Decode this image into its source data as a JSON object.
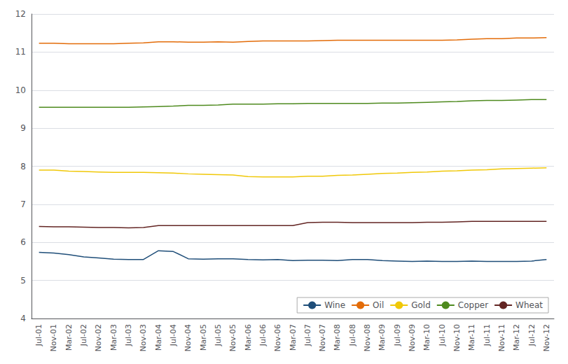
{
  "chart_data": {
    "type": "line",
    "categories": [
      "Jul-01",
      "Nov-01",
      "Mar-02",
      "Jul-02",
      "Nov-02",
      "Mar-03",
      "Jul-03",
      "Nov-03",
      "Mar-04",
      "Jul-04",
      "Nov-04",
      "Mar-05",
      "Jul-05",
      "Nov-05",
      "Mar-06",
      "Jul-06",
      "Nov-06",
      "Mar-07",
      "Jul-07",
      "Nov-07",
      "Mar-08",
      "Jul-08",
      "Nov-08",
      "Mar-09",
      "Jul-09",
      "Nov-09",
      "Mar-10",
      "Jul-10",
      "Nov-10",
      "Mar-11",
      "Jul-11",
      "Nov-11",
      "Mar-12",
      "Jul-12",
      "Nov-12"
    ],
    "series": [
      {
        "name": "Wine",
        "color": "#1F4E79",
        "values": [
          5.74,
          5.72,
          5.68,
          5.62,
          5.59,
          5.56,
          5.55,
          5.55,
          5.78,
          5.76,
          5.57,
          5.56,
          5.57,
          5.57,
          5.55,
          5.54,
          5.55,
          5.52,
          5.53,
          5.53,
          5.52,
          5.55,
          5.55,
          5.52,
          5.51,
          5.5,
          5.51,
          5.5,
          5.5,
          5.51,
          5.5,
          5.5,
          5.5,
          5.51,
          5.55
        ]
      },
      {
        "name": "Oil",
        "color": "#E36C09",
        "values": [
          11.23,
          11.23,
          11.22,
          11.22,
          11.22,
          11.22,
          11.23,
          11.24,
          11.27,
          11.27,
          11.26,
          11.26,
          11.27,
          11.26,
          11.28,
          11.29,
          11.29,
          11.29,
          11.29,
          11.3,
          11.31,
          11.31,
          11.31,
          11.31,
          11.31,
          11.31,
          11.31,
          11.31,
          11.32,
          11.34,
          11.35,
          11.35,
          11.37,
          11.37,
          11.38
        ]
      },
      {
        "name": "Gold",
        "color": "#F0C808",
        "values": [
          7.9,
          7.9,
          7.87,
          7.86,
          7.85,
          7.84,
          7.84,
          7.84,
          7.83,
          7.82,
          7.8,
          7.79,
          7.78,
          7.77,
          7.73,
          7.72,
          7.72,
          7.72,
          7.74,
          7.74,
          7.76,
          7.77,
          7.79,
          7.81,
          7.82,
          7.84,
          7.85,
          7.87,
          7.88,
          7.9,
          7.91,
          7.93,
          7.94,
          7.95,
          7.96
        ]
      },
      {
        "name": "Copper",
        "color": "#4E8A1E",
        "values": [
          9.55,
          9.55,
          9.55,
          9.55,
          9.55,
          9.55,
          9.55,
          9.56,
          9.57,
          9.58,
          9.6,
          9.6,
          9.61,
          9.63,
          9.63,
          9.63,
          9.64,
          9.64,
          9.65,
          9.65,
          9.65,
          9.65,
          9.65,
          9.66,
          9.66,
          9.67,
          9.68,
          9.69,
          9.7,
          9.72,
          9.73,
          9.73,
          9.74,
          9.75,
          9.75
        ]
      },
      {
        "name": "Wheat",
        "color": "#632523",
        "values": [
          6.42,
          6.41,
          6.41,
          6.4,
          6.39,
          6.39,
          6.38,
          6.39,
          6.44,
          6.44,
          6.44,
          6.44,
          6.44,
          6.44,
          6.44,
          6.44,
          6.44,
          6.44,
          6.52,
          6.53,
          6.53,
          6.52,
          6.52,
          6.52,
          6.52,
          6.52,
          6.53,
          6.53,
          6.54,
          6.55,
          6.55,
          6.55,
          6.55,
          6.55,
          6.55
        ]
      }
    ],
    "ylim": [
      4,
      12
    ],
    "yticks": [
      4,
      5,
      6,
      7,
      8,
      9,
      10,
      11,
      12
    ],
    "grid": true,
    "legend": "lower right"
  }
}
